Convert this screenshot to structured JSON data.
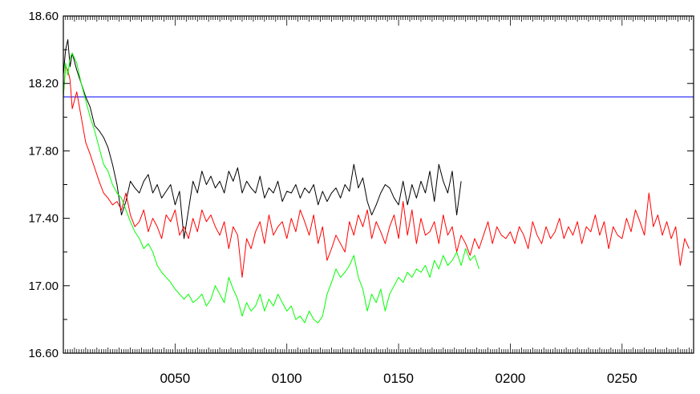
{
  "chart_data": {
    "type": "line",
    "title": "",
    "xlabel": "",
    "ylabel": "",
    "xlim": [
      0,
      282
    ],
    "ylim": [
      16.6,
      18.6
    ],
    "grid": false,
    "legend": "none",
    "yticks": [
      {
        "value": 18.6,
        "label": "18.60"
      },
      {
        "value": 18.2,
        "label": "18.20"
      },
      {
        "value": 17.8,
        "label": "17.80"
      },
      {
        "value": 17.4,
        "label": "17.40"
      },
      {
        "value": 17.0,
        "label": "17.00"
      },
      {
        "value": 16.6,
        "label": "16.60"
      }
    ],
    "xticks": [
      {
        "value": 50,
        "label": "0050"
      },
      {
        "value": 100,
        "label": "0100"
      },
      {
        "value": 150,
        "label": "0150"
      },
      {
        "value": 200,
        "label": "0200"
      },
      {
        "value": 250,
        "label": "0250"
      }
    ],
    "series": [
      {
        "color": "#0000ff",
        "x": [
          0,
          282
        ],
        "y": [
          18.12,
          18.12
        ]
      },
      {
        "color": "#000000",
        "x": [
          0,
          1,
          2,
          3,
          4,
          6,
          8,
          10,
          12,
          14,
          16,
          18,
          20,
          22,
          24,
          26,
          28,
          30,
          32,
          34,
          36,
          38,
          40,
          42,
          44,
          46,
          48,
          50,
          52,
          54,
          56,
          58,
          60,
          62,
          64,
          66,
          68,
          70,
          72,
          74,
          76,
          78,
          80,
          82,
          84,
          86,
          88,
          90,
          92,
          94,
          96,
          98,
          100,
          102,
          104,
          106,
          108,
          110,
          112,
          114,
          116,
          118,
          120,
          122,
          124,
          126,
          128,
          130,
          132,
          134,
          136,
          138,
          140,
          142,
          144,
          146,
          148,
          150,
          152,
          154,
          156,
          158,
          160,
          162,
          164,
          166,
          168,
          170,
          172,
          174,
          176,
          178
        ],
        "y": [
          18.25,
          18.4,
          18.46,
          18.3,
          18.38,
          18.28,
          18.2,
          18.12,
          18.06,
          17.95,
          17.92,
          17.88,
          17.82,
          17.72,
          17.6,
          17.42,
          17.5,
          17.62,
          17.58,
          17.55,
          17.62,
          17.66,
          17.55,
          17.6,
          17.52,
          17.56,
          17.6,
          17.48,
          17.56,
          17.28,
          17.45,
          17.62,
          17.55,
          17.68,
          17.6,
          17.65,
          17.58,
          17.62,
          17.55,
          17.68,
          17.62,
          17.7,
          17.55,
          17.62,
          17.58,
          17.55,
          17.65,
          17.52,
          17.58,
          17.55,
          17.62,
          17.5,
          17.56,
          17.55,
          17.6,
          17.52,
          17.58,
          17.55,
          17.6,
          17.48,
          17.56,
          17.5,
          17.55,
          17.58,
          17.52,
          17.6,
          17.56,
          17.72,
          17.58,
          17.64,
          17.5,
          17.42,
          17.48,
          17.55,
          17.6,
          17.58,
          17.52,
          17.48,
          17.62,
          17.48,
          17.6,
          17.52,
          17.62,
          17.55,
          17.68,
          17.5,
          17.72,
          17.62,
          17.55,
          17.68,
          17.42,
          17.62
        ]
      },
      {
        "color": "#ff0000",
        "x": [
          0,
          1,
          2,
          3,
          4,
          6,
          8,
          10,
          12,
          14,
          16,
          18,
          20,
          22,
          24,
          26,
          28,
          30,
          32,
          34,
          36,
          38,
          40,
          42,
          44,
          46,
          48,
          50,
          52,
          54,
          56,
          58,
          60,
          62,
          64,
          66,
          68,
          70,
          72,
          74,
          76,
          78,
          80,
          82,
          84,
          86,
          88,
          90,
          92,
          94,
          96,
          98,
          100,
          102,
          104,
          106,
          108,
          110,
          112,
          114,
          116,
          118,
          120,
          122,
          124,
          126,
          128,
          130,
          132,
          134,
          136,
          138,
          140,
          142,
          144,
          146,
          148,
          150,
          152,
          154,
          156,
          158,
          160,
          162,
          164,
          166,
          168,
          170,
          172,
          174,
          176,
          178,
          180,
          182,
          184,
          186,
          188,
          190,
          192,
          194,
          196,
          198,
          200,
          202,
          204,
          206,
          208,
          210,
          212,
          214,
          216,
          218,
          220,
          222,
          224,
          226,
          228,
          230,
          232,
          234,
          236,
          238,
          240,
          242,
          244,
          246,
          248,
          250,
          252,
          254,
          256,
          258,
          260,
          262,
          264,
          266,
          268,
          270,
          272,
          274,
          276,
          278,
          280
        ],
        "y": [
          18.12,
          18.3,
          18.28,
          18.22,
          18.05,
          18.15,
          18.0,
          17.85,
          17.78,
          17.7,
          17.62,
          17.55,
          17.52,
          17.48,
          17.5,
          17.45,
          17.55,
          17.42,
          17.35,
          17.38,
          17.45,
          17.32,
          17.4,
          17.35,
          17.28,
          17.42,
          17.38,
          17.45,
          17.3,
          17.35,
          17.28,
          17.4,
          17.32,
          17.45,
          17.38,
          17.42,
          17.35,
          17.3,
          17.38,
          17.22,
          17.35,
          17.3,
          17.05,
          17.28,
          17.22,
          17.32,
          17.38,
          17.25,
          17.42,
          17.3,
          17.35,
          17.38,
          17.28,
          17.4,
          17.32,
          17.45,
          17.38,
          17.3,
          17.42,
          17.25,
          17.35,
          17.15,
          17.22,
          17.3,
          17.25,
          17.2,
          17.38,
          17.3,
          17.42,
          17.35,
          17.45,
          17.28,
          17.38,
          17.32,
          17.25,
          17.35,
          17.42,
          17.28,
          17.5,
          17.3,
          17.45,
          17.25,
          17.4,
          17.3,
          17.32,
          17.38,
          17.25,
          17.42,
          17.3,
          17.35,
          17.2,
          17.3,
          17.25,
          17.18,
          17.28,
          17.22,
          17.3,
          17.38,
          17.25,
          17.35,
          17.3,
          17.28,
          17.32,
          17.25,
          17.35,
          17.3,
          17.22,
          17.38,
          17.3,
          17.25,
          17.35,
          17.28,
          17.32,
          17.4,
          17.28,
          17.35,
          17.3,
          17.38,
          17.25,
          17.35,
          17.32,
          17.42,
          17.3,
          17.38,
          17.22,
          17.35,
          17.3,
          17.28,
          17.4,
          17.32,
          17.45,
          17.38,
          17.3,
          17.55,
          17.35,
          17.42,
          17.3,
          17.38,
          17.28,
          17.35,
          17.12,
          17.28,
          17.22
        ]
      },
      {
        "color": "#00ff00",
        "x": [
          0,
          1,
          2,
          3,
          4,
          6,
          8,
          10,
          12,
          14,
          16,
          18,
          20,
          22,
          24,
          26,
          28,
          30,
          32,
          34,
          36,
          38,
          40,
          42,
          44,
          46,
          48,
          50,
          52,
          54,
          56,
          58,
          60,
          62,
          64,
          66,
          68,
          70,
          72,
          74,
          76,
          78,
          80,
          82,
          84,
          86,
          88,
          90,
          92,
          94,
          96,
          98,
          100,
          102,
          104,
          106,
          108,
          110,
          112,
          114,
          116,
          118,
          120,
          122,
          124,
          126,
          128,
          130,
          132,
          134,
          136,
          138,
          140,
          142,
          144,
          146,
          148,
          150,
          152,
          154,
          156,
          158,
          160,
          162,
          164,
          166,
          168,
          170,
          172,
          174,
          176,
          178,
          180,
          182,
          184,
          186
        ],
        "y": [
          18.12,
          18.32,
          18.25,
          18.35,
          18.38,
          18.32,
          18.2,
          18.1,
          18.0,
          17.92,
          17.82,
          17.72,
          17.68,
          17.6,
          17.55,
          17.52,
          17.45,
          17.38,
          17.32,
          17.28,
          17.22,
          17.25,
          17.2,
          17.12,
          17.08,
          17.05,
          17.02,
          16.98,
          16.95,
          16.92,
          16.95,
          16.9,
          16.92,
          16.95,
          16.88,
          16.92,
          17.0,
          16.95,
          16.9,
          17.05,
          16.98,
          16.92,
          16.82,
          16.9,
          16.85,
          16.88,
          16.95,
          16.85,
          16.92,
          16.88,
          16.95,
          16.9,
          16.85,
          16.88,
          16.8,
          16.82,
          16.78,
          16.85,
          16.8,
          16.78,
          16.82,
          16.95,
          17.02,
          17.1,
          17.05,
          17.08,
          17.12,
          17.18,
          17.05,
          16.98,
          16.85,
          16.95,
          16.9,
          16.98,
          16.85,
          16.95,
          17.0,
          17.05,
          17.02,
          17.08,
          17.05,
          17.1,
          17.08,
          17.12,
          17.05,
          17.15,
          17.1,
          17.18,
          17.12,
          17.15,
          17.2,
          17.12,
          17.22,
          17.15,
          17.18,
          17.1
        ]
      }
    ]
  }
}
